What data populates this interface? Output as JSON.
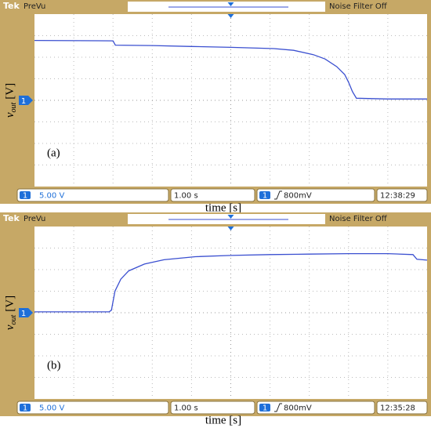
{
  "chart_data": [
    {
      "type": "line",
      "brand": "Tek",
      "mode": "PreVu",
      "filter": "Noise Filter Off",
      "channel": "1",
      "scale_v": "5.00 V",
      "scale_t": "1.00 s",
      "trigger_level": "800mV",
      "time": "12:38:29",
      "panel_label": "(a)",
      "xlabel": "time [s]",
      "ylabel_var": "v",
      "ylabel_sub": "out",
      "ylabel_unit": "[V]",
      "xlim": [
        0,
        10
      ],
      "ylim": [
        -20,
        20
      ],
      "series": [
        {
          "color": "#3a4fd0",
          "x": [
            0,
            2.0,
            2.06,
            3,
            4,
            5,
            6.1,
            6.6,
            7.1,
            7.4,
            7.7,
            7.9,
            8.0,
            8.1,
            8.2,
            9,
            10
          ],
          "values": [
            13.9,
            13.8,
            12.8,
            12.7,
            12.5,
            12.3,
            12.0,
            11.6,
            10.6,
            9.6,
            7.8,
            6.0,
            4.2,
            2.0,
            0.5,
            0.3,
            0.3
          ]
        }
      ]
    },
    {
      "type": "line",
      "brand": "Tek",
      "mode": "PreVu",
      "filter": "Noise Filter Off",
      "channel": "1",
      "scale_v": "5.00 V",
      "scale_t": "1.00 s",
      "trigger_level": "800mV",
      "time": "12:35:28",
      "panel_label": "(b)",
      "xlabel": "time [s]",
      "ylabel_var": "v",
      "ylabel_sub": "out",
      "ylabel_unit": "[V]",
      "xlim": [
        0,
        10
      ],
      "ylim": [
        -20,
        20
      ],
      "series": [
        {
          "color": "#3a4fd0",
          "x": [
            0,
            1.9,
            1.96,
            2.05,
            2.2,
            2.4,
            2.8,
            3.3,
            4.1,
            5,
            6,
            7,
            8,
            9,
            9.64,
            9.74,
            10
          ],
          "values": [
            0.2,
            0.2,
            0.6,
            5.0,
            7.8,
            9.7,
            11.3,
            12.3,
            13.0,
            13.3,
            13.5,
            13.6,
            13.7,
            13.7,
            13.5,
            12.4,
            12.2
          ]
        }
      ]
    }
  ]
}
